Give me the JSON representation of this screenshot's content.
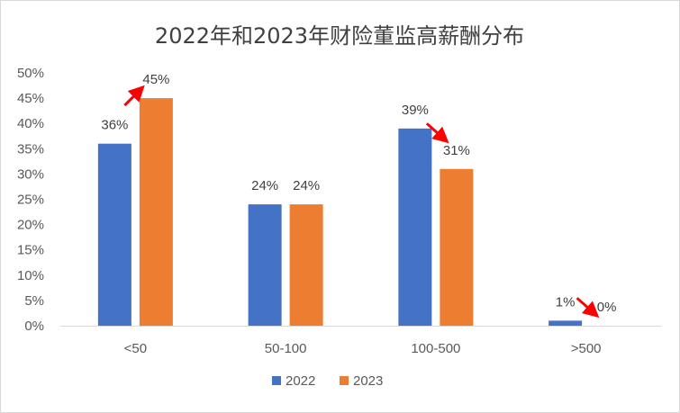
{
  "chart_data": {
    "type": "bar",
    "title": "2022年和2023年财险董监高薪酬分布",
    "categories": [
      "<50",
      "50-100",
      "100-500",
      ">500"
    ],
    "series": [
      {
        "name": "2022",
        "values": [
          36,
          24,
          39,
          1
        ],
        "labels": [
          "36%",
          "24%",
          "39%",
          "1%"
        ],
        "color": "#4472c4"
      },
      {
        "name": "2023",
        "values": [
          45,
          24,
          31,
          0
        ],
        "labels": [
          "45%",
          "24%",
          "31%",
          "0%"
        ],
        "color": "#ed7d31"
      }
    ],
    "xlabel": "",
    "ylabel": "",
    "ylim": [
      0,
      50
    ],
    "yticks": [
      "0%",
      "5%",
      "10%",
      "15%",
      "20%",
      "25%",
      "30%",
      "35%",
      "40%",
      "45%",
      "50%"
    ],
    "grid": false,
    "legend": "bottom-center",
    "annotations": [
      {
        "category": "<50",
        "direction": "up",
        "color": "#ff0000"
      },
      {
        "category": "100-500",
        "direction": "down",
        "color": "#ff0000"
      },
      {
        "category": ">500",
        "direction": "down",
        "color": "#ff0000"
      }
    ]
  }
}
